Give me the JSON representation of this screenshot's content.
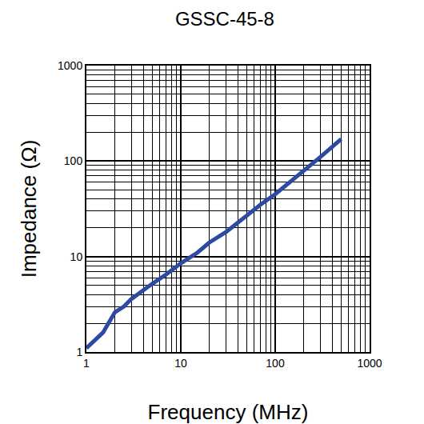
{
  "chart_data": {
    "type": "line",
    "title": "GSSC-45-8",
    "x_label": "Frequency (MHz)",
    "y_label": "Impedance (Ω)",
    "x": [
      1,
      1.5,
      2,
      2.5,
      3,
      4,
      5,
      7,
      10,
      15,
      20,
      30,
      50,
      70,
      100,
      150,
      200,
      300,
      500
    ],
    "values": [
      1.1,
      1.6,
      2.6,
      3.0,
      3.6,
      4.5,
      5.2,
      6.5,
      8.5,
      11,
      14,
      18,
      27,
      35,
      45,
      62,
      80,
      110,
      170
    ],
    "color": "#2b4aa0",
    "xlim": [
      1,
      1000
    ],
    "ylim": [
      1,
      1000
    ],
    "xticks": [
      1,
      10,
      100,
      1000
    ],
    "yticks": [
      1,
      10,
      100,
      1000
    ],
    "log": true,
    "grid": true
  }
}
